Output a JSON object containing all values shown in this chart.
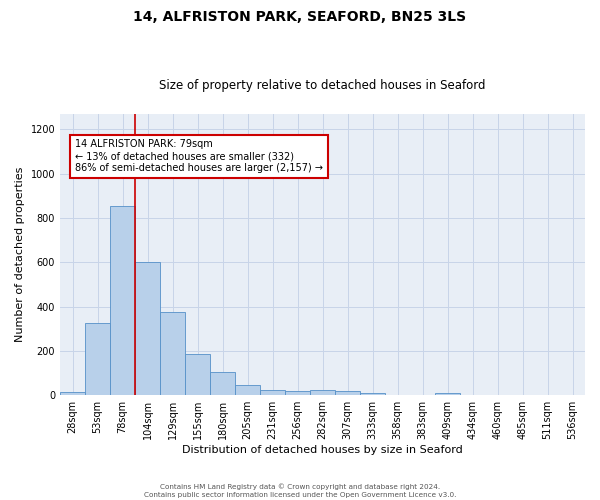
{
  "title": "14, ALFRISTON PARK, SEAFORD, BN25 3LS",
  "subtitle": "Size of property relative to detached houses in Seaford",
  "xlabel": "Distribution of detached houses by size in Seaford",
  "ylabel": "Number of detached properties",
  "footer_line1": "Contains HM Land Registry data © Crown copyright and database right 2024.",
  "footer_line2": "Contains public sector information licensed under the Open Government Licence v3.0.",
  "bin_labels": [
    "28sqm",
    "53sqm",
    "78sqm",
    "104sqm",
    "129sqm",
    "155sqm",
    "180sqm",
    "205sqm",
    "231sqm",
    "256sqm",
    "282sqm",
    "307sqm",
    "333sqm",
    "358sqm",
    "383sqm",
    "409sqm",
    "434sqm",
    "460sqm",
    "485sqm",
    "511sqm",
    "536sqm"
  ],
  "bar_values": [
    15,
    325,
    855,
    600,
    375,
    185,
    105,
    48,
    25,
    18,
    22,
    18,
    10,
    0,
    0,
    10,
    0,
    0,
    0,
    0,
    0
  ],
  "bar_color": "#b8d0ea",
  "bar_edge_color": "#5590c8",
  "grid_color": "#c8d4e8",
  "background_color": "#e8eef6",
  "vline_color": "#cc0000",
  "annotation_text": "14 ALFRISTON PARK: 79sqm\n← 13% of detached houses are smaller (332)\n86% of semi-detached houses are larger (2,157) →",
  "annotation_box_color": "#ffffff",
  "annotation_box_edge": "#cc0000",
  "ylim": [
    0,
    1270
  ],
  "yticks": [
    0,
    200,
    400,
    600,
    800,
    1000,
    1200
  ],
  "title_fontsize": 10,
  "subtitle_fontsize": 8.5,
  "xlabel_fontsize": 8,
  "ylabel_fontsize": 8,
  "tick_fontsize": 7,
  "annotation_fontsize": 7
}
